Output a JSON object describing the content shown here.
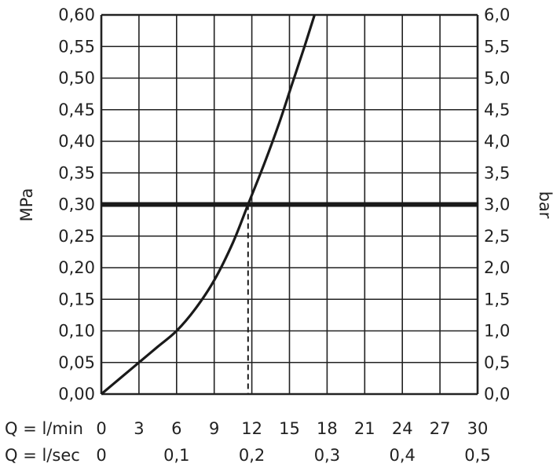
{
  "chart_data": {
    "type": "line",
    "title": "",
    "grid": true,
    "x_axes": [
      {
        "label": "Q = l/min",
        "ticks": [
          "0",
          "3",
          "6",
          "9",
          "12",
          "15",
          "18",
          "21",
          "24",
          "27",
          "30"
        ],
        "range": [
          0,
          30
        ]
      },
      {
        "label": "Q = l/sec",
        "ticks": [
          "0",
          "0,1",
          "0,2",
          "0,3",
          "0,4",
          "0,5"
        ],
        "range": [
          0,
          0.5
        ]
      }
    ],
    "y_axes": [
      {
        "label": "MPa",
        "side": "left",
        "ticks": [
          "0,00",
          "0,05",
          "0,10",
          "0,15",
          "0,20",
          "0,25",
          "0,30",
          "0,35",
          "0,40",
          "0,45",
          "0,50",
          "0,55",
          "0,60"
        ],
        "range": [
          0,
          0.6
        ]
      },
      {
        "label": "bar",
        "side": "right",
        "ticks": [
          "0,0",
          "0,5",
          "1,0",
          "1,5",
          "2,0",
          "2,5",
          "3,0",
          "3,5",
          "4,0",
          "4,5",
          "5,0",
          "5,5",
          "6,0"
        ],
        "range": [
          0,
          6
        ]
      }
    ],
    "series": [
      {
        "x": [
          0,
          1.5,
          3,
          4.5,
          6,
          7.5,
          9,
          10.5,
          11.7,
          13,
          14.2,
          15.2,
          16.2,
          17
        ],
        "y": [
          0,
          0.025,
          0.05,
          0.075,
          0.1,
          0.135,
          0.18,
          0.24,
          0.3,
          0.365,
          0.43,
          0.49,
          0.55,
          0.6
        ]
      }
    ],
    "reference_line": {
      "y": 0.3
    },
    "reference_drop": {
      "x": 11.7,
      "y": 0.3
    }
  }
}
